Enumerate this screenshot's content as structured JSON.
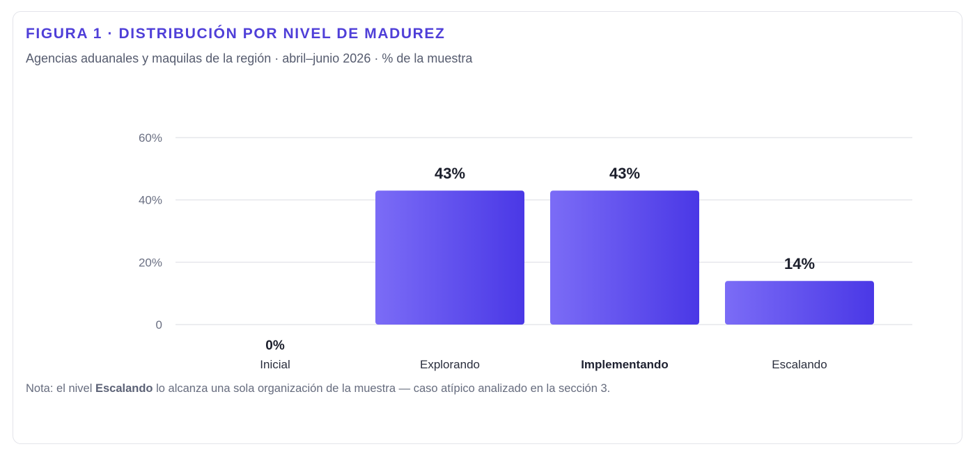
{
  "figure": {
    "title": "FIGURA 1 · DISTRIBUCIÓN POR NIVEL DE MADUREZ",
    "subtitle": "Agencias aduanales y maquilas de la región · abril–junio 2026 · % de la muestra"
  },
  "note": {
    "prefix": "Nota: el nivel ",
    "emphasis": "Escalando",
    "suffix": " lo alcanza una sola organización de la muestra — caso atípico analizado en la sección 3."
  },
  "colors": {
    "bar_start": "#7b6cf6",
    "bar_end": "#4a38e6",
    "title": "#4f3fd8",
    "grid": "#e6e7ec"
  },
  "chart_data": {
    "type": "bar",
    "categories": [
      "Inicial",
      "Explorando",
      "Implementando",
      "Escalando"
    ],
    "values": [
      0,
      43,
      43,
      14
    ],
    "value_labels": [
      "0%",
      "43%",
      "43%",
      "14%"
    ],
    "emphasized_category": "Implementando",
    "ylim": [
      0,
      60
    ],
    "yticks": [
      0,
      20,
      40,
      60
    ],
    "ytick_labels": [
      "0",
      "20%",
      "40%",
      "60%"
    ],
    "grid": true,
    "legend": "none"
  }
}
